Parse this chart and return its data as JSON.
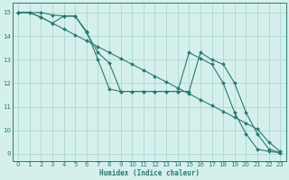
{
  "xlabel": "Humidex (Indice chaleur)",
  "bg_color": "#d5f0ec",
  "grid_color": "#aad8d2",
  "line_color": "#2a7a6e",
  "xlim": [
    -0.5,
    23.5
  ],
  "ylim": [
    8.7,
    15.4
  ],
  "yticks": [
    9,
    10,
    11,
    12,
    13,
    14,
    15
  ],
  "xticks": [
    0,
    1,
    2,
    3,
    4,
    5,
    6,
    7,
    8,
    9,
    10,
    11,
    12,
    13,
    14,
    15,
    16,
    17,
    18,
    19,
    20,
    21,
    22,
    23
  ],
  "line1_x": [
    0,
    1,
    2,
    3,
    4,
    5,
    6,
    7,
    8,
    9,
    10,
    11,
    12,
    13,
    14,
    15,
    16,
    17,
    18,
    19,
    20,
    21,
    22,
    23
  ],
  "line1_y": [
    15.0,
    15.0,
    14.8,
    14.55,
    14.3,
    14.05,
    13.8,
    13.55,
    13.3,
    13.05,
    12.8,
    12.55,
    12.3,
    12.05,
    11.8,
    11.55,
    11.3,
    11.05,
    10.8,
    10.55,
    10.3,
    10.05,
    9.5,
    9.1
  ],
  "line2_x": [
    0,
    1,
    2,
    3,
    4,
    5,
    6,
    7,
    8,
    9,
    10,
    11,
    12,
    13,
    14,
    15,
    16,
    17,
    18,
    19,
    20,
    21,
    22,
    23
  ],
  "line2_y": [
    15.0,
    15.0,
    14.8,
    14.55,
    14.85,
    14.85,
    14.2,
    13.0,
    11.75,
    11.65,
    11.65,
    11.65,
    11.65,
    11.65,
    11.65,
    13.3,
    13.05,
    12.8,
    12.0,
    10.75,
    9.85,
    9.2,
    9.1,
    9.05
  ],
  "line3_x": [
    0,
    2,
    3,
    4,
    5,
    6,
    7,
    8,
    9,
    10,
    11,
    12,
    13,
    14,
    15,
    16,
    17,
    18,
    19,
    20,
    21,
    22,
    23
  ],
  "line3_y": [
    15.0,
    15.0,
    14.9,
    14.85,
    14.85,
    14.15,
    13.3,
    12.85,
    11.65,
    11.65,
    11.65,
    11.65,
    11.65,
    11.65,
    11.65,
    13.3,
    13.0,
    12.8,
    12.0,
    10.75,
    9.85,
    9.2,
    9.05
  ]
}
